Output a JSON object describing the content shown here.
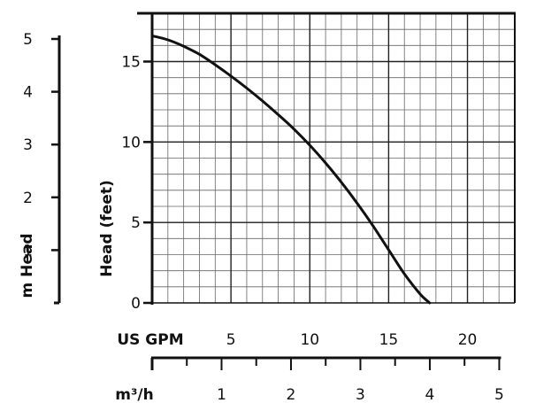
{
  "chart_data": {
    "type": "line",
    "title": "",
    "xlabel": "US GPM",
    "ylabel": "Head (feet)",
    "xlim": [
      0,
      23
    ],
    "ylim": [
      0,
      18
    ],
    "x_ticks": [
      5,
      10,
      15,
      20
    ],
    "y_ticks": [
      0,
      5,
      10,
      15
    ],
    "grid": true,
    "series": [
      {
        "x": [
          0,
          1,
          2,
          3,
          4,
          5,
          6,
          7,
          8,
          9,
          10,
          11,
          12,
          13,
          14,
          15,
          16,
          17,
          17.6
        ],
        "y": [
          16.6,
          16.35,
          15.95,
          15.45,
          14.8,
          14.1,
          13.35,
          12.55,
          11.7,
          10.8,
          9.8,
          8.7,
          7.5,
          6.2,
          4.8,
          3.3,
          1.8,
          0.55,
          0
        ]
      }
    ],
    "secondary_y_axis": {
      "label": "m Head",
      "ticks": [
        1,
        2,
        3,
        4,
        5
      ]
    },
    "secondary_x_axis": {
      "label": "m³/h",
      "ticks": [
        1,
        2,
        3,
        4,
        5
      ]
    }
  }
}
